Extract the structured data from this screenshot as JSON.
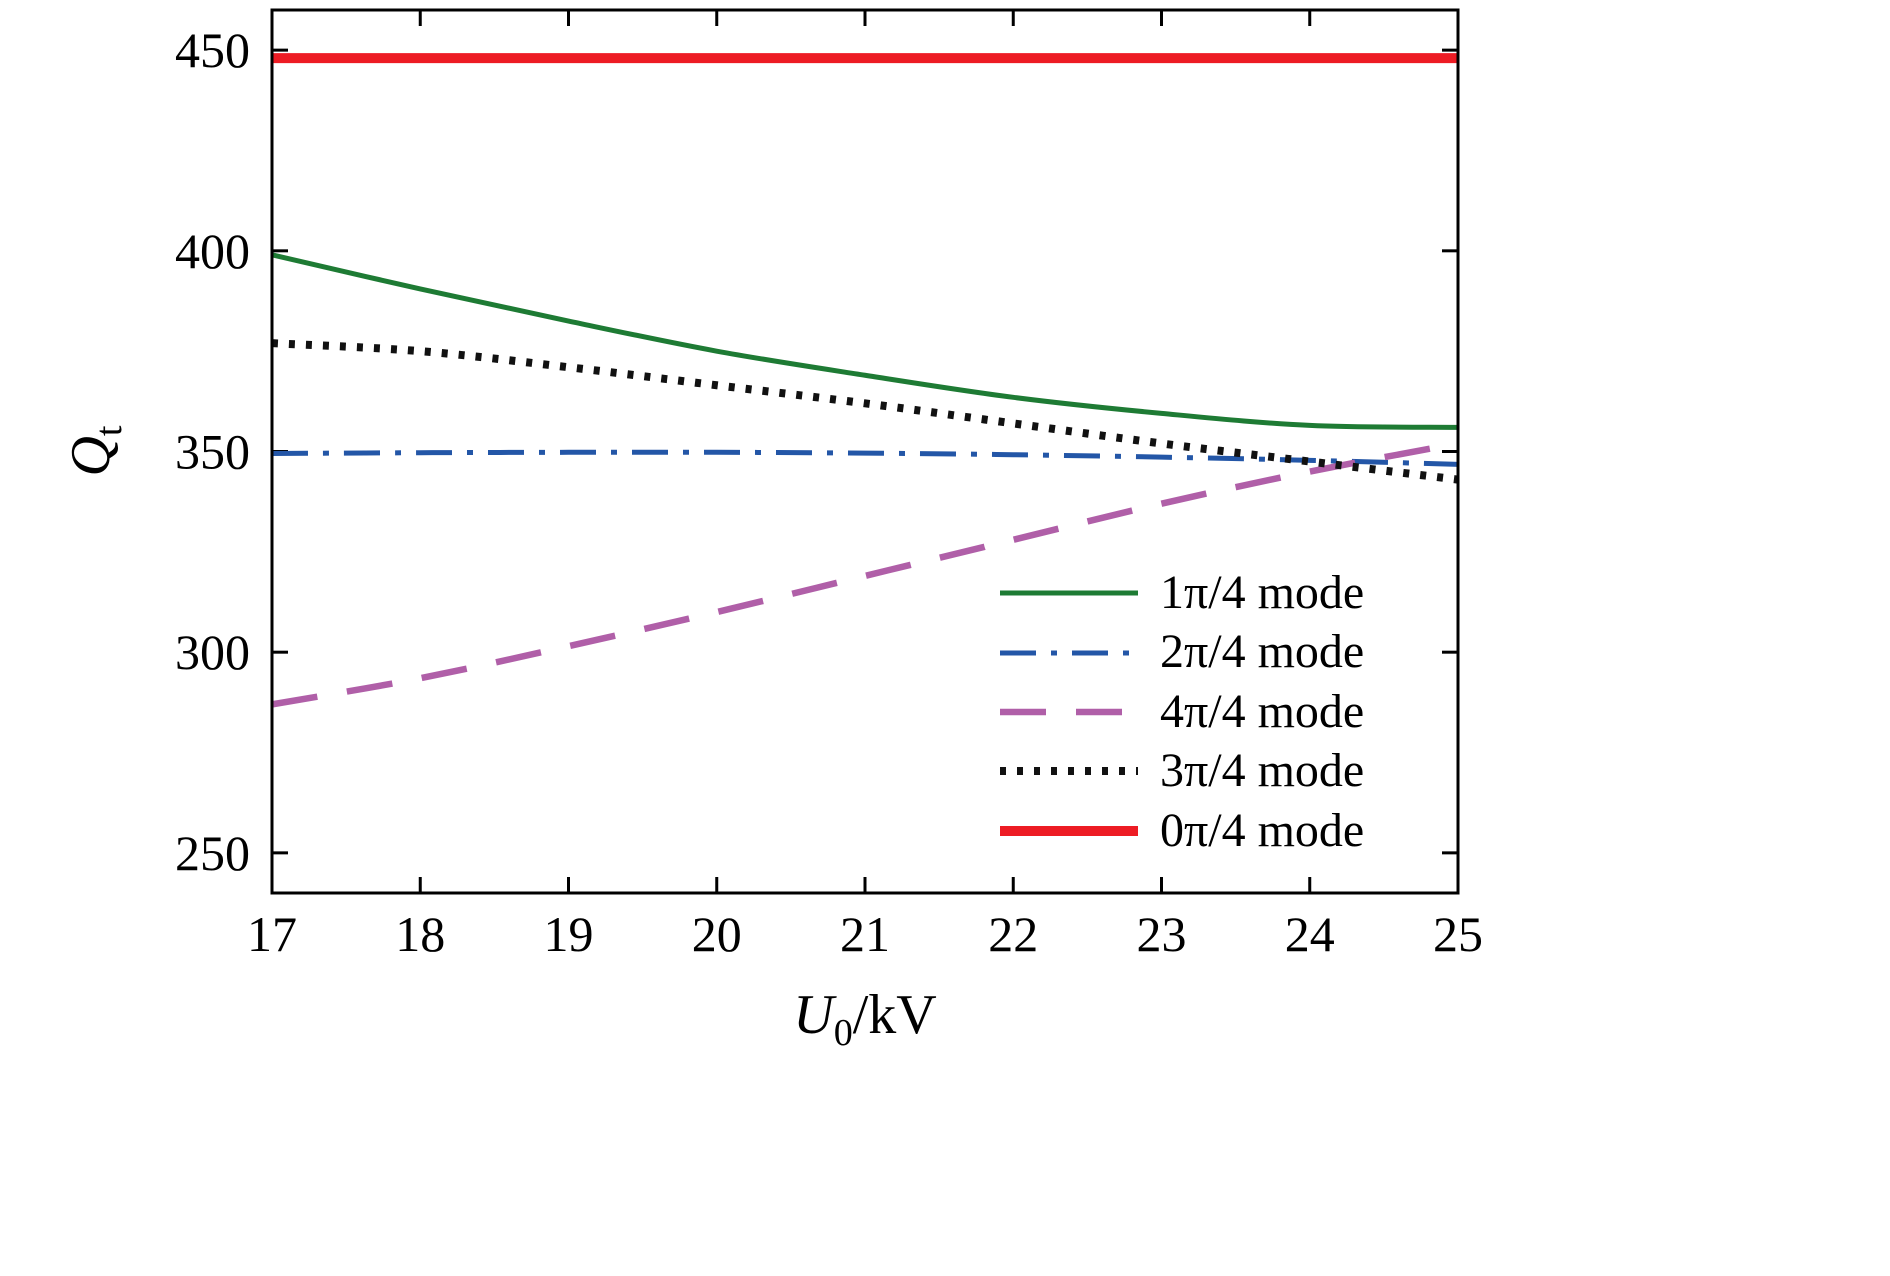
{
  "chart_data": {
    "type": "line",
    "title": "",
    "xlabel": "U0/kV",
    "xlabel_main": "U",
    "xlabel_sub": "0",
    "xlabel_rest": "/kV",
    "ylabel": "Qt",
    "ylabel_main": "Q",
    "ylabel_sub": "t",
    "xlim": [
      17,
      25
    ],
    "ylim": [
      240,
      460
    ],
    "xticks": [
      17,
      18,
      19,
      20,
      21,
      22,
      23,
      24,
      25
    ],
    "yticks": [
      250,
      300,
      350,
      400,
      450
    ],
    "x": [
      17,
      18,
      19,
      20,
      21,
      22,
      23,
      24,
      25
    ],
    "grid": false,
    "legend_position": "lower-right-inside",
    "series": [
      {
        "name": "1π/4 mode",
        "color": "#1e7b34",
        "style": "solid",
        "width": 5,
        "values": [
          399,
          390.5,
          382.5,
          375,
          369,
          363.5,
          359.5,
          356.5,
          356
        ]
      },
      {
        "name": "2π/4 mode",
        "color": "#2356a7",
        "style": "dashdot",
        "width": 5,
        "values": [
          349.5,
          349.7,
          349.8,
          349.8,
          349.6,
          349.2,
          348.6,
          347.8,
          346.8
        ]
      },
      {
        "name": "4π/4 mode",
        "color": "#b05fa8",
        "style": "dashed",
        "width": 6.5,
        "values": [
          287,
          293.5,
          301.5,
          310,
          319,
          328,
          337,
          345,
          352
        ]
      },
      {
        "name": "3π/4 mode",
        "color": "#111111",
        "style": "dotted",
        "width": 8,
        "values": [
          377,
          375,
          371,
          366.5,
          362,
          357,
          352,
          347.5,
          343
        ]
      },
      {
        "name": "0π/4 mode",
        "color": "#ed1c24",
        "style": "solid",
        "width": 10,
        "values": [
          448,
          448,
          448,
          448,
          448,
          448,
          448,
          448,
          448
        ]
      }
    ]
  },
  "colors": {
    "axis": "#000000",
    "background": "#ffffff"
  }
}
